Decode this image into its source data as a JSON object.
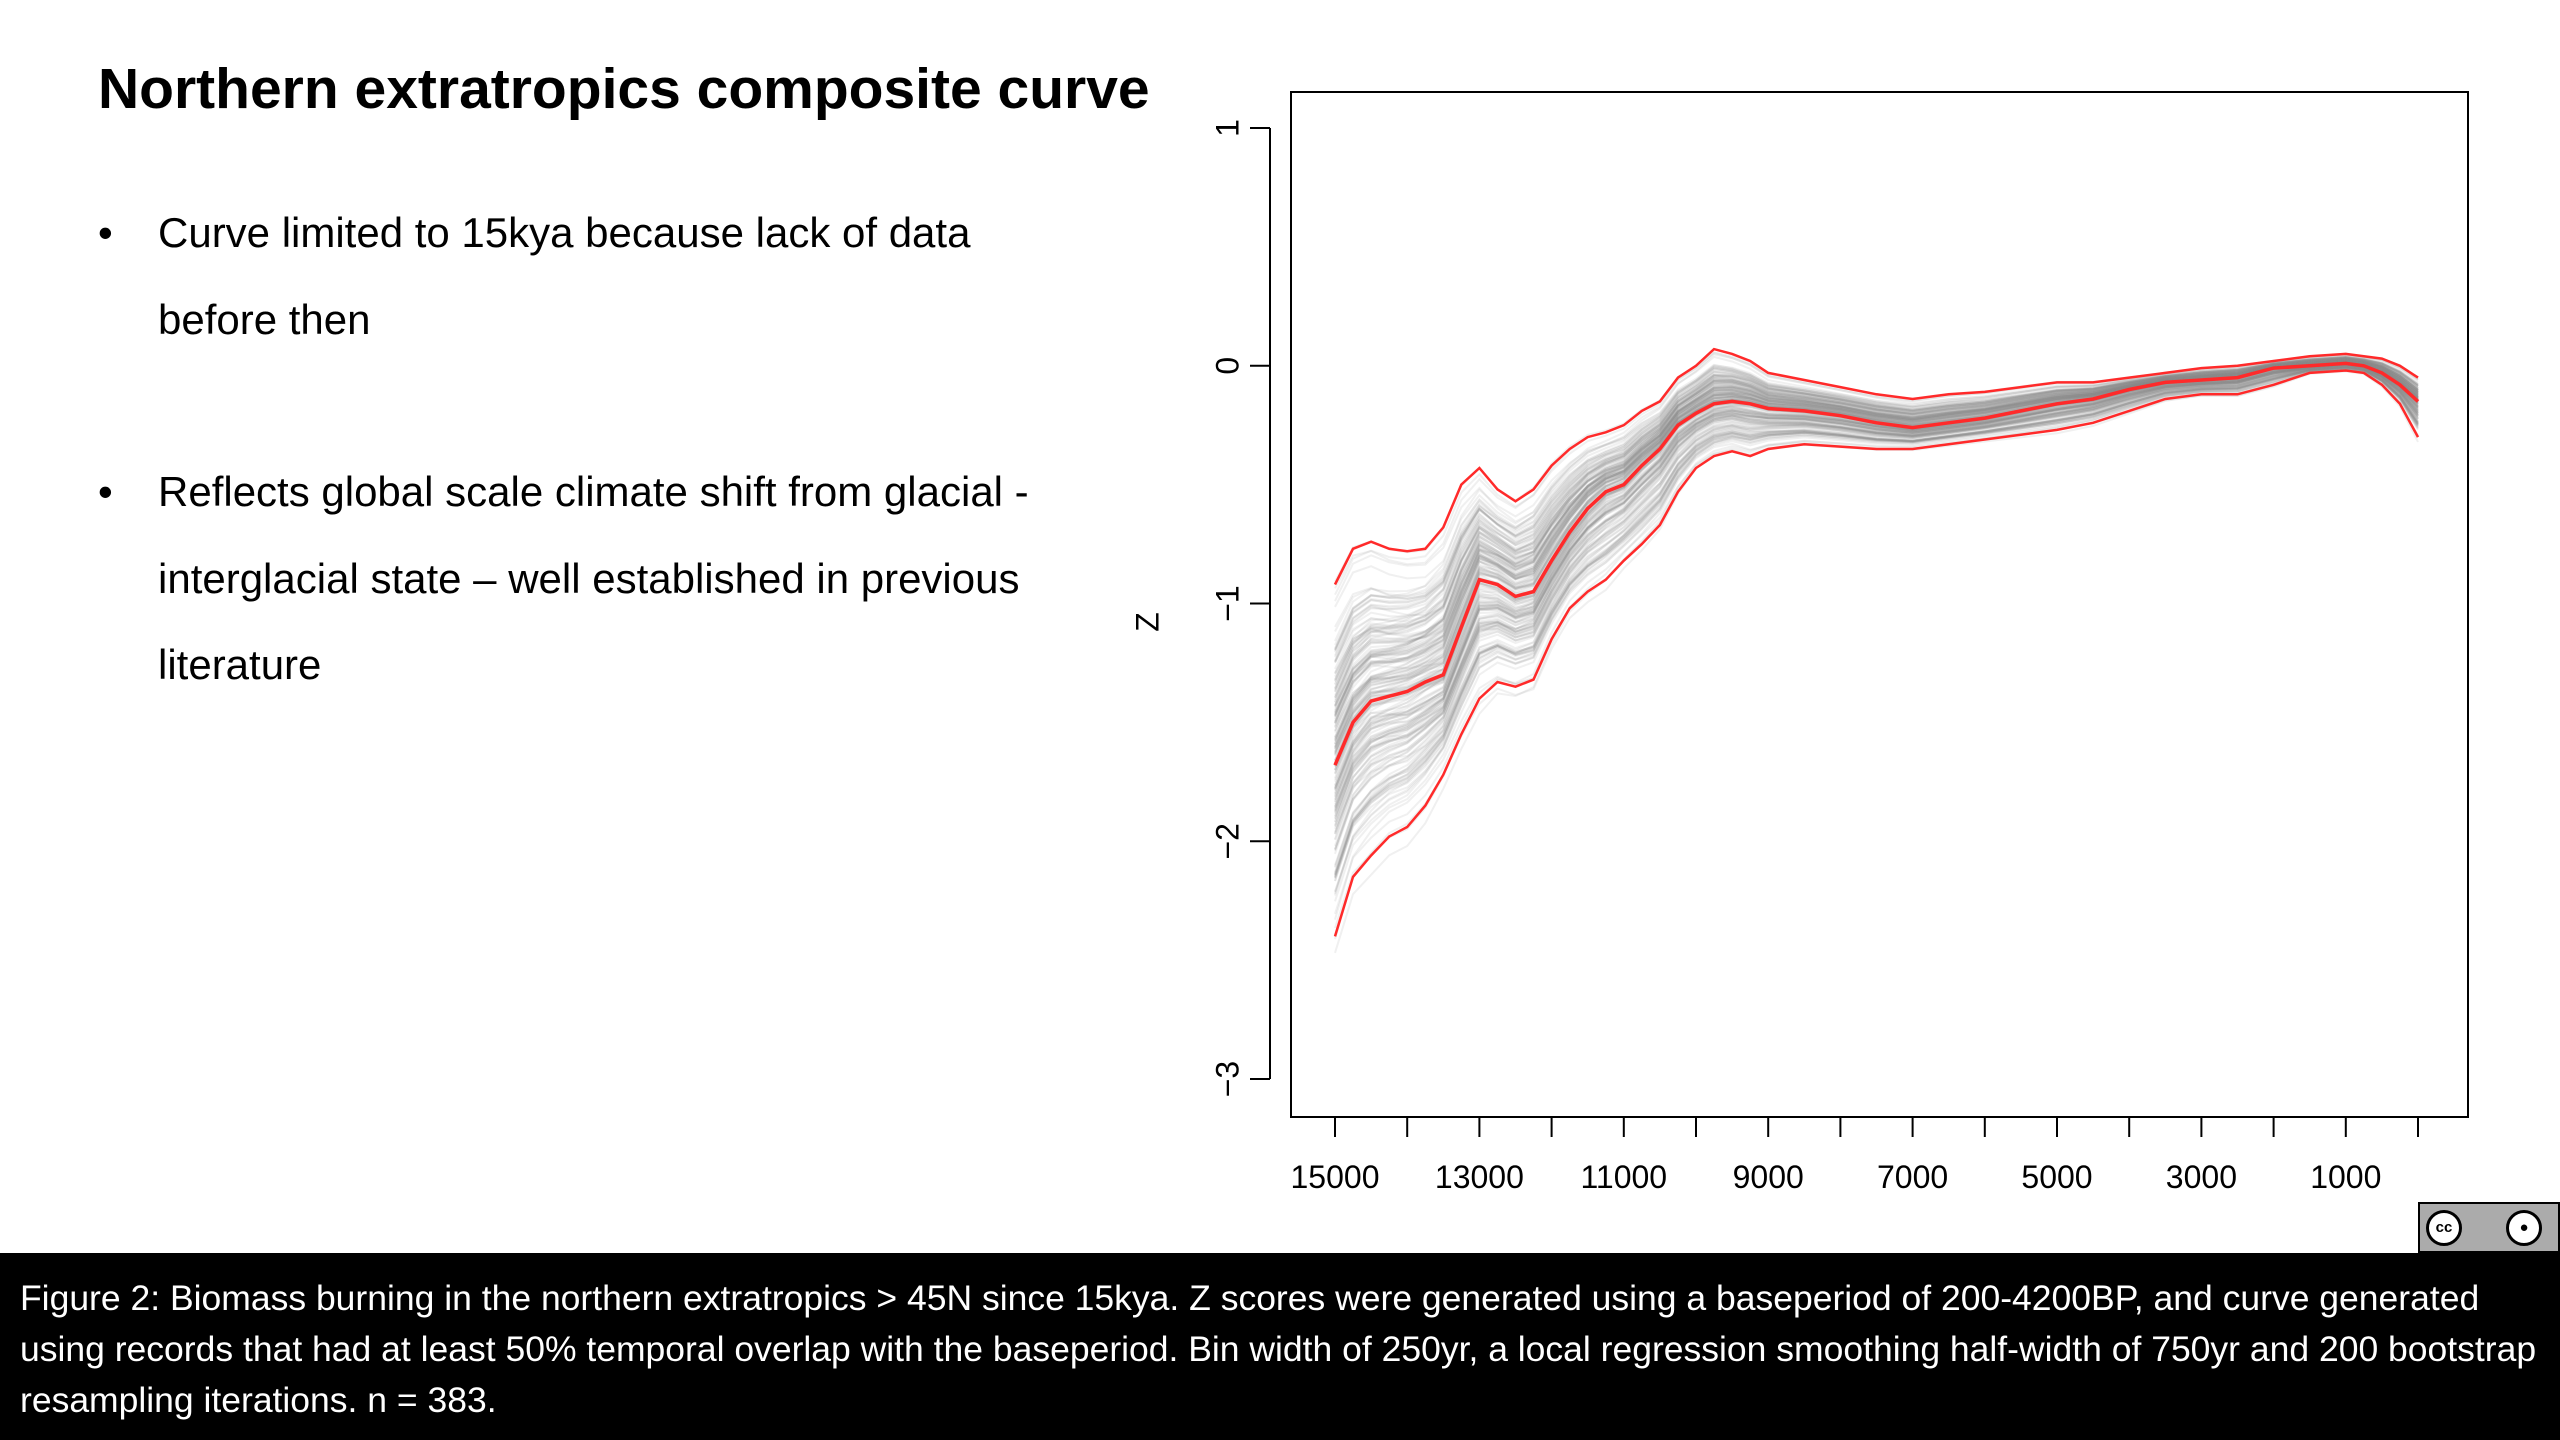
{
  "slide": {
    "title": "Northern extratropics composite curve",
    "bullets": [
      "Curve limited to 15kya because lack of data before then",
      "Reflects global scale climate shift from glacial - interglacial state – well established in previous literature"
    ],
    "bullet_glyph": "•"
  },
  "caption": "Figure 2: Biomass burning in the northern extratropics > 45N since 15kya. Z scores were generated using a baseperiod of 200-4200BP, and curve generated using records that had at least 50% temporal overlap with the baseperiod. Bin width of 250yr, a local regression smoothing half-width of 750yr and 200 bootstrap resampling iterations. n = 383.",
  "license_badge": {
    "icons": [
      "cc-icon",
      "by-icon"
    ],
    "colors": {
      "badge": "#ababab"
    }
  },
  "chart_data": {
    "type": "line",
    "title": "",
    "xlabel": "",
    "ylabel": "Z",
    "x_reversed": true,
    "xlim": [
      15000,
      0
    ],
    "ylim": [
      -3,
      1
    ],
    "x_tick_labels": [
      "15000",
      "13000",
      "11000",
      "9000",
      "7000",
      "5000",
      "3000",
      "1000"
    ],
    "y_tick_labels": [
      "1",
      "0",
      "-1",
      "-2",
      "-3"
    ],
    "x": [
      15000,
      14750,
      14500,
      14250,
      14000,
      13750,
      13500,
      13250,
      13000,
      12750,
      12500,
      12250,
      12000,
      11750,
      11500,
      11250,
      11000,
      10750,
      10500,
      10250,
      10000,
      9750,
      9500,
      9250,
      9000,
      8500,
      8000,
      7500,
      7000,
      6500,
      6000,
      5500,
      5000,
      4500,
      4000,
      3500,
      3000,
      2500,
      2000,
      1500,
      1000,
      750,
      500,
      250,
      0
    ],
    "series": [
      {
        "role": "mean",
        "values": [
          -1.68,
          -1.5,
          -1.41,
          -1.39,
          -1.37,
          -1.33,
          -1.3,
          -1.1,
          -0.9,
          -0.92,
          -0.97,
          -0.95,
          -0.82,
          -0.7,
          -0.6,
          -0.53,
          -0.5,
          -0.42,
          -0.35,
          -0.25,
          -0.2,
          -0.16,
          -0.15,
          -0.16,
          -0.18,
          -0.19,
          -0.21,
          -0.24,
          -0.26,
          -0.24,
          -0.22,
          -0.19,
          -0.16,
          -0.14,
          -0.1,
          -0.07,
          -0.06,
          -0.05,
          -0.01,
          0.0,
          0.01,
          0.0,
          -0.03,
          -0.08,
          -0.15
        ]
      },
      {
        "role": "upper-ci",
        "values": [
          -0.92,
          -0.77,
          -0.74,
          -0.77,
          -0.78,
          -0.77,
          -0.68,
          -0.5,
          -0.43,
          -0.52,
          -0.57,
          -0.52,
          -0.42,
          -0.35,
          -0.3,
          -0.28,
          -0.25,
          -0.19,
          -0.15,
          -0.05,
          0.0,
          0.07,
          0.05,
          0.02,
          -0.03,
          -0.06,
          -0.09,
          -0.12,
          -0.14,
          -0.12,
          -0.11,
          -0.09,
          -0.07,
          -0.07,
          -0.05,
          -0.03,
          -0.01,
          0.0,
          0.02,
          0.04,
          0.05,
          0.04,
          0.03,
          0.0,
          -0.05
        ]
      },
      {
        "role": "lower-ci",
        "values": [
          -2.4,
          -2.15,
          -2.06,
          -1.98,
          -1.94,
          -1.85,
          -1.72,
          -1.55,
          -1.4,
          -1.33,
          -1.35,
          -1.32,
          -1.15,
          -1.02,
          -0.95,
          -0.9,
          -0.82,
          -0.75,
          -0.67,
          -0.53,
          -0.43,
          -0.38,
          -0.36,
          -0.38,
          -0.35,
          -0.33,
          -0.34,
          -0.35,
          -0.35,
          -0.33,
          -0.31,
          -0.29,
          -0.27,
          -0.24,
          -0.19,
          -0.14,
          -0.12,
          -0.12,
          -0.08,
          -0.03,
          -0.02,
          -0.03,
          -0.08,
          -0.16,
          -0.3
        ]
      }
    ],
    "bootstrap_iterations": 200,
    "grid": false,
    "legend": "none",
    "colors": {
      "mean": "#ff2a2a",
      "ci": "#ff2a2a",
      "bootstrap": "#8c8c8c"
    }
  }
}
